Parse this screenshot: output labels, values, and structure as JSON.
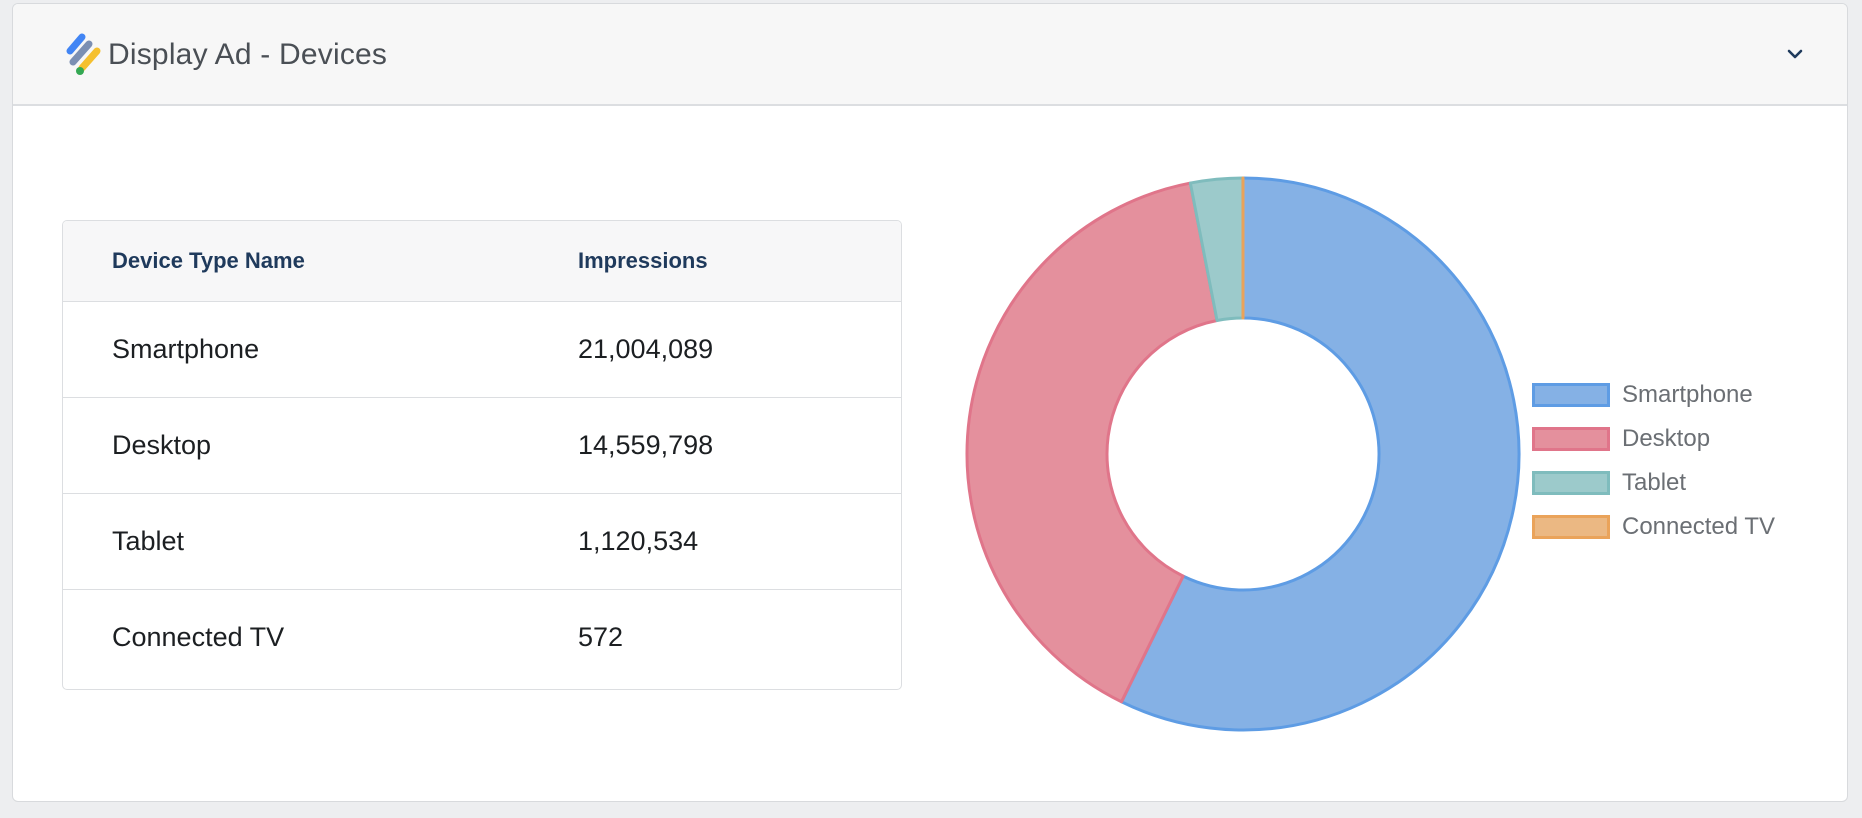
{
  "card": {
    "title": "Display Ad - Devices"
  },
  "table": {
    "headers": [
      "Device Type Name",
      "Impressions"
    ],
    "rows": [
      {
        "name": "Smartphone",
        "impressions": "21,004,089"
      },
      {
        "name": "Desktop",
        "impressions": "14,559,798"
      },
      {
        "name": "Tablet",
        "impressions": "1,120,534"
      },
      {
        "name": "Connected TV",
        "impressions": "572"
      }
    ]
  },
  "chart_data": {
    "type": "pie",
    "variant": "doughnut",
    "categories": [
      "Smartphone",
      "Desktop",
      "Tablet",
      "Connected TV"
    ],
    "values": [
      21004089,
      14559798,
      1120534,
      572
    ],
    "colors": {
      "Smartphone": {
        "fill": "#85b1e5",
        "stroke": "#5e9ce4"
      },
      "Desktop": {
        "fill": "#e4909d",
        "stroke": "#e0758a"
      },
      "Tablet": {
        "fill": "#9ccacb",
        "stroke": "#7fbcbd"
      },
      "Connected TV": {
        "fill": "#ebb883",
        "stroke": "#eaa35a"
      }
    },
    "legend_position": "right"
  },
  "icons": {
    "logo": "display-ad-logo-icon",
    "collapse": "chevron-down-icon"
  }
}
